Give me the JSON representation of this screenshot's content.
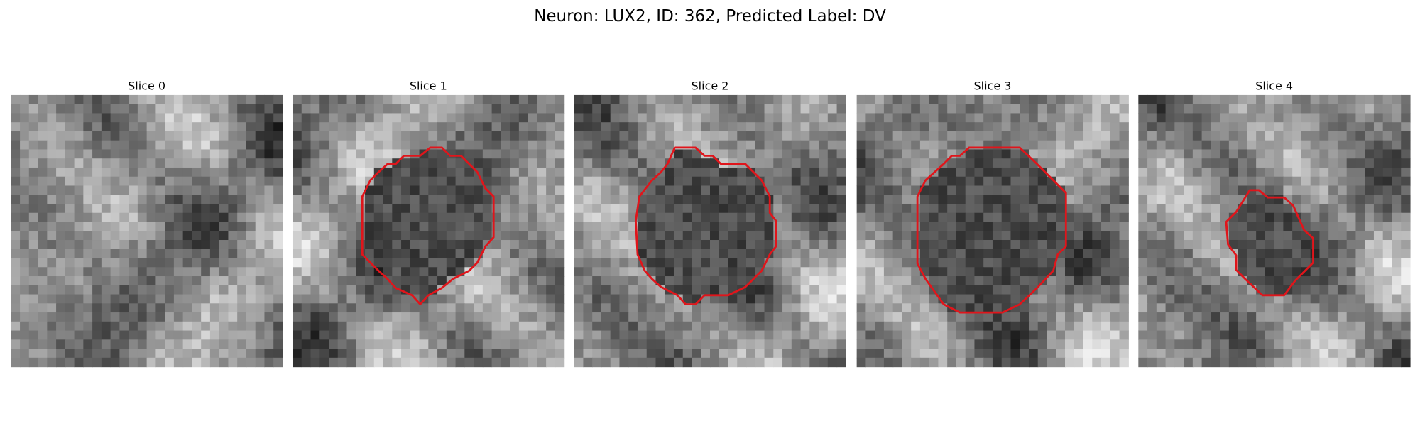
{
  "title": "Neuron: LUX2, ID: 362, Predicted Label: DV",
  "panels": [
    {
      "label": "Slice 0"
    },
    {
      "label": "Slice 1"
    },
    {
      "label": "Slice 2"
    },
    {
      "label": "Slice 3"
    },
    {
      "label": "Slice 4"
    }
  ]
}
